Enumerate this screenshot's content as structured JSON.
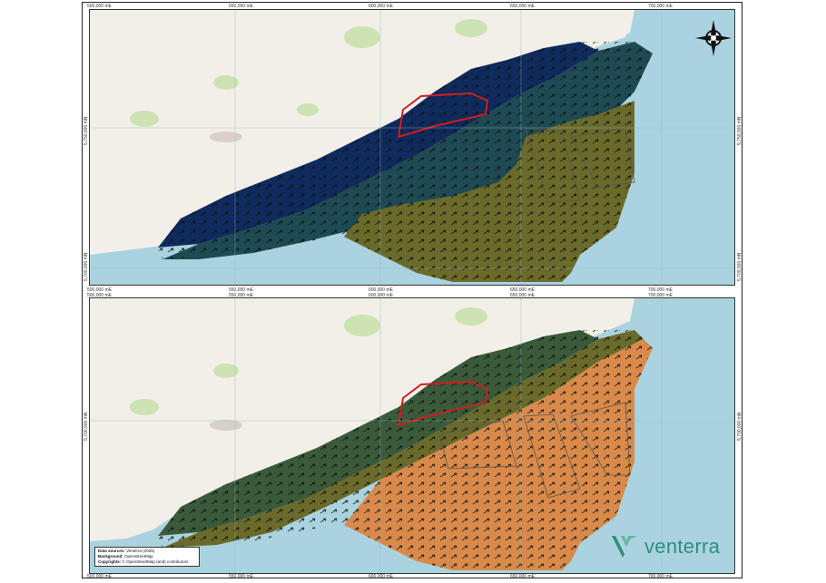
{
  "map": {
    "x_ticks": [
      "500,000 mE",
      "550,000 mE",
      "600,000 mE",
      "650,000 mE",
      "700,000 mE"
    ],
    "y_ticks_top": [
      "5,750,000 mN",
      "5,700,000 mN"
    ],
    "y_ticks_bottom": [
      "5,700,000 mN"
    ],
    "colors": {
      "sea": "#aad3df",
      "land": "#f2efe9",
      "deep_blue": "#0f2a5c",
      "teal": "#1e4a53",
      "olive": "#6a6a2a",
      "orange": "#d98a4a",
      "highlight_outline": "#d11e1e"
    }
  },
  "compass_icon": "compass-rose-icon",
  "logo": {
    "text": "venterra",
    "icon": "venterra-v-logo-icon",
    "color": "#2e8f7c"
  },
  "sources": {
    "data_label": "Data sources:",
    "data_value": "Venterra (2025)",
    "background_label": "Background:",
    "background_value": "OpenStreetMap",
    "copyright_label": "Copyrights:",
    "copyright_value": "© OpenStreetMap (and) contributors"
  }
}
